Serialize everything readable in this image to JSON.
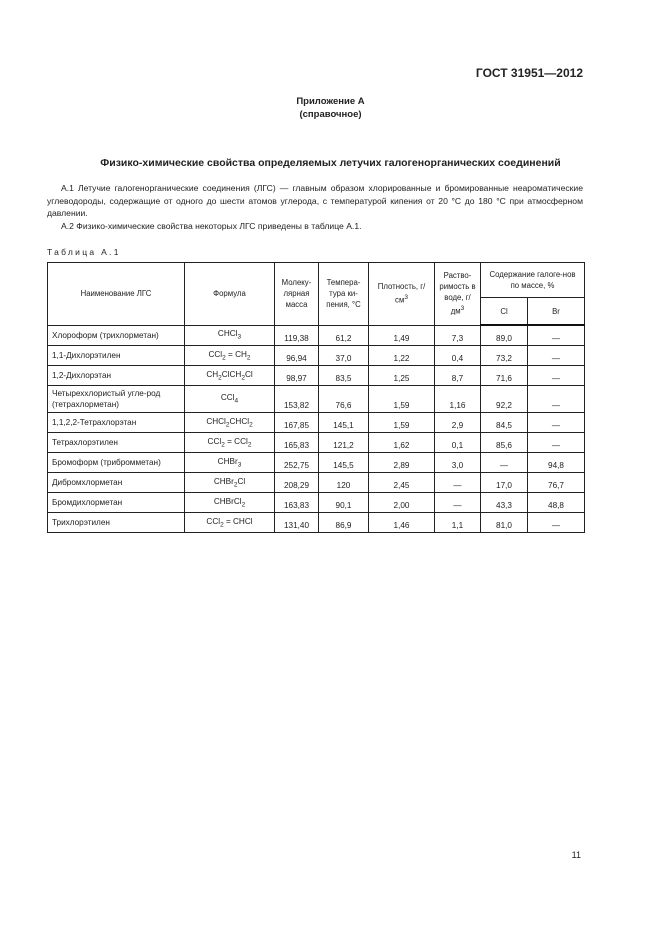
{
  "header": {
    "standard": "ГОСТ 31951—2012"
  },
  "appendix": {
    "title": "Приложение А",
    "subtitle": "(справочное)"
  },
  "section_title": "Физико-химические свойства определяемых летучих галогенорганических соединений",
  "paragraphs": [
    "А.1  Летучие галогенорганические соединения (ЛГС) — главным образом хлорированные и бромированные неароматические углеводороды, содержащие от одного до шести атомов углерода, с температурой кипения от 20 °С до 180 °С при атмосферном давлении.",
    "А.2  Физико-химические свойства некоторых ЛГС приведены в таблице А.1."
  ],
  "table": {
    "caption": "Таблица А.1",
    "headers": {
      "name": "Наименование ЛГС",
      "formula": "Формула",
      "mass": "Молеку-лярная масса",
      "temp": "Темпера-тура ки-пения, °С",
      "density": "Плотность, г/см",
      "density_sup": "3",
      "solubility": "Раство-римость в воде, г/дм",
      "solubility_sup": "3",
      "halogen": "Содержание галоге-нов по массе, %",
      "cl": "Cl",
      "br": "Br"
    },
    "rows": [
      {
        "name": "Хлороформ (трихлорметан)",
        "formula": [
          [
            "CHCl",
            ""
          ],
          [
            "3",
            "s"
          ]
        ],
        "mass": "119,38",
        "temp": "61,2",
        "density": "1,49",
        "solubility": "7,3",
        "cl": "89,0",
        "br": "—"
      },
      {
        "name": "1,1-Дихлорэтилен",
        "formula": [
          [
            "CCl",
            ""
          ],
          [
            "2",
            "s"
          ],
          [
            " = CH",
            ""
          ],
          [
            "2",
            "s"
          ]
        ],
        "mass": "96,94",
        "temp": "37,0",
        "density": "1,22",
        "solubility": "0,4",
        "cl": "73,2",
        "br": "—"
      },
      {
        "name": "1,2-Дихлорэтан",
        "formula": [
          [
            "CH",
            ""
          ],
          [
            "2",
            "s"
          ],
          [
            "ClCH",
            ""
          ],
          [
            "2",
            "s"
          ],
          [
            "Cl",
            ""
          ]
        ],
        "mass": "98,97",
        "temp": "83,5",
        "density": "1,25",
        "solubility": "8,7",
        "cl": "71,6",
        "br": "—"
      },
      {
        "name": "Четыреххлористый угле-род (тетрахлорметан)",
        "formula": [
          [
            "CCl",
            ""
          ],
          [
            "4",
            "s"
          ]
        ],
        "mass": "153,82",
        "temp": "76,6",
        "density": "1,59",
        "solubility": "1,16",
        "cl": "92,2",
        "br": "—"
      },
      {
        "name": "1,1,2,2-Тетрахлорэтан",
        "formula": [
          [
            "CHCl",
            ""
          ],
          [
            "2",
            "s"
          ],
          [
            "CHCl",
            ""
          ],
          [
            "2",
            "s"
          ]
        ],
        "mass": "167,85",
        "temp": "145,1",
        "density": "1,59",
        "solubility": "2,9",
        "cl": "84,5",
        "br": "—"
      },
      {
        "name": "Тетрахлорэтилен",
        "formula": [
          [
            "CCl",
            ""
          ],
          [
            "2",
            "s"
          ],
          [
            " = CCl",
            ""
          ],
          [
            "2",
            "s"
          ]
        ],
        "mass": "165,83",
        "temp": "121,2",
        "density": "1,62",
        "solubility": "0,1",
        "cl": "85,6",
        "br": "—"
      },
      {
        "name": "Бромоформ (трибромметан)",
        "formula": [
          [
            "CHBr",
            ""
          ],
          [
            "3",
            "s"
          ]
        ],
        "mass": "252,75",
        "temp": "145,5",
        "density": "2,89",
        "solubility": "3,0",
        "cl": "—",
        "br": "94,8"
      },
      {
        "name": "Дибромхлорметан",
        "formula": [
          [
            "CHBr",
            ""
          ],
          [
            "2",
            "s"
          ],
          [
            "Cl",
            ""
          ]
        ],
        "mass": "208,29",
        "temp": "120",
        "density": "2,45",
        "solubility": "—",
        "cl": "17,0",
        "br": "76,7"
      },
      {
        "name": "Бромдихлорметан",
        "formula": [
          [
            "CHBrCl",
            ""
          ],
          [
            "2",
            "s"
          ]
        ],
        "mass": "163,83",
        "temp": "90,1",
        "density": "2,00",
        "solubility": "—",
        "cl": "43,3",
        "br": "48,8"
      },
      {
        "name": "Трихлорэтилен",
        "formula": [
          [
            "CCl",
            ""
          ],
          [
            "2",
            "s"
          ],
          [
            " = CHCl",
            ""
          ]
        ],
        "mass": "131,40",
        "temp": "86,9",
        "density": "1,46",
        "solubility": "1,1",
        "cl": "81,0",
        "br": "—"
      }
    ]
  },
  "footer": {
    "page_number": "11"
  }
}
